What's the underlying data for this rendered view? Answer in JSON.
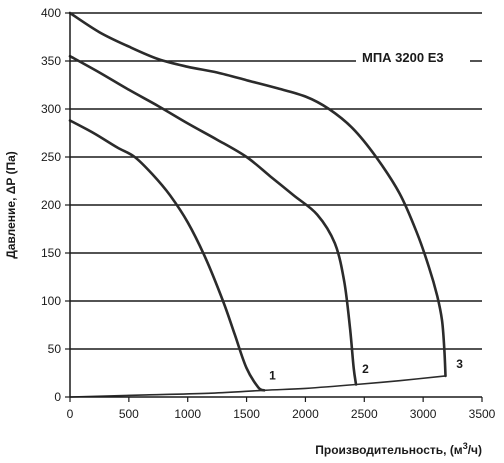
{
  "chart_data": {
    "type": "line",
    "title": "МПА 3200 Е3",
    "xlabel_main": "Производительность, (м",
    "xlabel_sup": "3",
    "xlabel_end": "/ч)",
    "ylabel": "Давление, ΔP (Па)",
    "xlim": [
      0,
      3500
    ],
    "ylim": [
      0,
      400
    ],
    "xticks": [
      0,
      500,
      1000,
      1500,
      2000,
      2500,
      3000,
      3500
    ],
    "yticks": [
      0,
      50,
      100,
      150,
      200,
      250,
      300,
      350,
      400
    ],
    "grid": "horizontal",
    "colors": {
      "line": "#2b2b2b",
      "grid": "#1a1a1a"
    },
    "series": [
      {
        "name": "1",
        "points": [
          [
            0,
            288
          ],
          [
            200,
            275
          ],
          [
            400,
            260
          ],
          [
            550,
            250
          ],
          [
            700,
            232
          ],
          [
            850,
            210
          ],
          [
            1000,
            182
          ],
          [
            1150,
            145
          ],
          [
            1300,
            100
          ],
          [
            1400,
            65
          ],
          [
            1500,
            30
          ],
          [
            1600,
            10
          ],
          [
            1650,
            7
          ]
        ]
      },
      {
        "name": "2",
        "points": [
          [
            0,
            355
          ],
          [
            250,
            338
          ],
          [
            500,
            320
          ],
          [
            750,
            303
          ],
          [
            1000,
            285
          ],
          [
            1250,
            268
          ],
          [
            1500,
            250
          ],
          [
            1700,
            230
          ],
          [
            1900,
            210
          ],
          [
            2100,
            190
          ],
          [
            2250,
            160
          ],
          [
            2330,
            120
          ],
          [
            2380,
            70
          ],
          [
            2410,
            30
          ],
          [
            2430,
            13
          ]
        ]
      },
      {
        "name": "3",
        "points": [
          [
            0,
            400
          ],
          [
            250,
            380
          ],
          [
            500,
            365
          ],
          [
            750,
            352
          ],
          [
            1000,
            344
          ],
          [
            1250,
            338
          ],
          [
            1500,
            330
          ],
          [
            1750,
            322
          ],
          [
            2000,
            313
          ],
          [
            2200,
            300
          ],
          [
            2400,
            280
          ],
          [
            2600,
            250
          ],
          [
            2800,
            212
          ],
          [
            2950,
            170
          ],
          [
            3050,
            135
          ],
          [
            3120,
            105
          ],
          [
            3160,
            80
          ],
          [
            3180,
            50
          ],
          [
            3190,
            22
          ]
        ]
      },
      {
        "points": [
          [
            0,
            0
          ],
          [
            600,
            2
          ],
          [
            1200,
            4
          ],
          [
            1650,
            7
          ],
          [
            2000,
            9
          ],
          [
            2430,
            13
          ],
          [
            2800,
            17
          ],
          [
            3190,
            22
          ]
        ]
      }
    ],
    "curve_labels": [
      {
        "text": "1",
        "x": 1720,
        "y": 18
      },
      {
        "text": "2",
        "x": 2510,
        "y": 25
      },
      {
        "text": "3",
        "x": 3310,
        "y": 30
      }
    ]
  }
}
